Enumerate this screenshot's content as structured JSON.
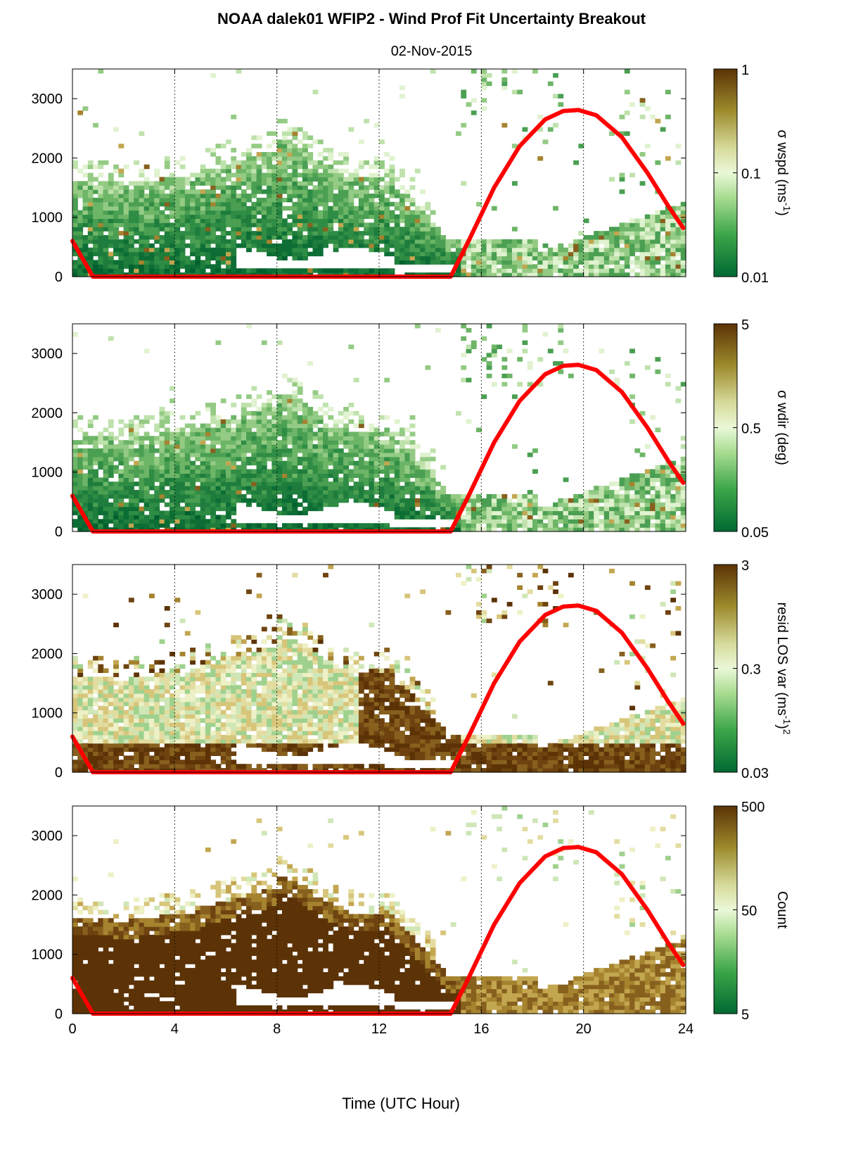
{
  "title": "NOAA dalek01 WFIP2 - Wind Prof Fit Uncertainty Breakout",
  "date": "02-Nov-2015",
  "chart_data": [
    {
      "type": "heatmap",
      "colorbar_label": "σ wspd (ms",
      "colorbar_sup": "-1",
      "colorbar_suffix": ")",
      "colorbar_ticks": [
        "1",
        "0.1",
        "0.01"
      ],
      "colorbar_values": [
        1,
        0.1,
        0.01
      ],
      "colorscale": "log",
      "xlim": [
        0,
        24
      ],
      "ylim": [
        0,
        3500
      ],
      "yticks": [
        0,
        1000,
        2000,
        3000
      ]
    },
    {
      "type": "heatmap",
      "colorbar_label": "σ wdir (deg)",
      "colorbar_sup": "",
      "colorbar_suffix": "",
      "colorbar_ticks": [
        "5",
        "0.5",
        "0.05"
      ],
      "colorbar_values": [
        5,
        0.5,
        0.05
      ],
      "colorscale": "log",
      "xlim": [
        0,
        24
      ],
      "ylim": [
        0,
        3500
      ],
      "yticks": [
        0,
        1000,
        2000,
        3000
      ]
    },
    {
      "type": "heatmap",
      "colorbar_label": "resid LOS var (ms",
      "colorbar_sup": "-1",
      "colorbar_suffix": ")",
      "colorbar_sup2": "2",
      "colorbar_ticks": [
        "3",
        "0.3",
        "0.03"
      ],
      "colorbar_values": [
        3,
        0.3,
        0.03
      ],
      "colorscale": "log",
      "xlim": [
        0,
        24
      ],
      "ylim": [
        0,
        3500
      ],
      "yticks": [
        0,
        1000,
        2000,
        3000
      ]
    },
    {
      "type": "heatmap",
      "colorbar_label": "Count",
      "colorbar_sup": "",
      "colorbar_suffix": "",
      "colorbar_ticks": [
        "500",
        "50",
        "5"
      ],
      "colorbar_values": [
        500,
        50,
        5
      ],
      "colorscale": "log",
      "xlim": [
        0,
        24
      ],
      "ylim": [
        0,
        3500
      ],
      "yticks": [
        0,
        1000,
        2000,
        3000
      ]
    }
  ],
  "xticks": [
    0,
    4,
    8,
    12,
    16,
    20,
    24
  ],
  "xlabel": "Time (UTC Hour)",
  "sun_curve": {
    "color": "#ff0000",
    "x": [
      0,
      0.8,
      14.8,
      15.5,
      16.5,
      17.5,
      18.5,
      19.2,
      19.8,
      20.5,
      21.5,
      22.5,
      23.3,
      23.9
    ],
    "y": [
      600,
      0,
      0,
      600,
      1500,
      2200,
      2650,
      2790,
      2810,
      2720,
      2350,
      1750,
      1200,
      820
    ]
  }
}
